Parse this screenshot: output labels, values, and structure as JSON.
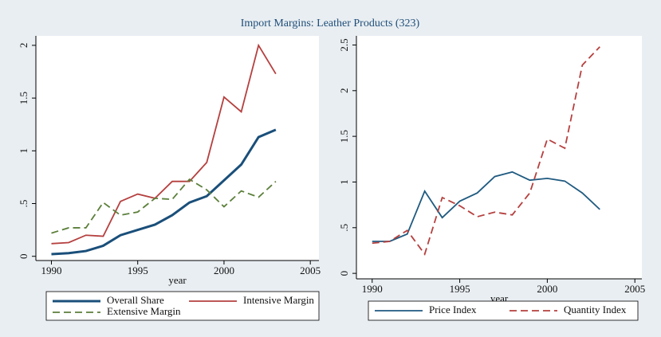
{
  "title": "Import Margins: Leather Products (323)",
  "chart_data": [
    {
      "type": "line",
      "xlabel": "year",
      "x": [
        1990,
        1991,
        1992,
        1993,
        1994,
        1995,
        1996,
        1997,
        1998,
        1999,
        2000,
        2001,
        2002,
        2003
      ],
      "xlim": [
        1989.1,
        2005.5
      ],
      "xticks": [
        1990,
        1995,
        2000,
        2005
      ],
      "ylim": [
        -0.04,
        2.09
      ],
      "yticks": [
        0,
        {
          "value": 0.5,
          "label": ".5"
        },
        1,
        1.5,
        2
      ],
      "series": [
        {
          "name": "Overall Share",
          "color": "#1a4f7a",
          "dash": false,
          "values": [
            0.02,
            0.03,
            0.05,
            0.1,
            0.2,
            0.25,
            0.3,
            0.39,
            0.51,
            0.57,
            0.72,
            0.87,
            1.13,
            1.2
          ]
        },
        {
          "name": "Intensive Margin",
          "color": "#b5403f",
          "dash": false,
          "values": [
            0.12,
            0.13,
            0.2,
            0.19,
            0.52,
            0.59,
            0.55,
            0.71,
            0.71,
            0.89,
            1.51,
            1.37,
            2.0,
            1.73
          ]
        },
        {
          "name": "Extensive Margin",
          "color": "#5b7f3a",
          "dash": true,
          "values": [
            0.22,
            0.27,
            0.27,
            0.51,
            0.39,
            0.42,
            0.55,
            0.54,
            0.73,
            0.63,
            0.47,
            0.62,
            0.56,
            0.71
          ]
        }
      ]
    },
    {
      "type": "line",
      "xlabel": "year",
      "x": [
        1990,
        1991,
        1992,
        1993,
        1994,
        1995,
        1996,
        1997,
        1998,
        1999,
        2000,
        2001,
        2002,
        2003
      ],
      "xlim": [
        1989.1,
        2005.4
      ],
      "xticks": [
        1990,
        1995,
        2000,
        2005
      ],
      "ylim": [
        -0.06,
        2.6
      ],
      "yticks": [
        0,
        {
          "value": 0.5,
          "label": ".5"
        },
        1,
        1.5,
        2,
        2.5
      ],
      "series": [
        {
          "name": "Price Index",
          "color": "#1f5a80",
          "dash": false,
          "values": [
            0.35,
            0.35,
            0.43,
            0.9,
            0.61,
            0.79,
            0.88,
            1.06,
            1.11,
            1.02,
            1.04,
            1.01,
            0.88,
            0.7
          ]
        },
        {
          "name": "Quantity Index",
          "color": "#b5403f",
          "dash": true,
          "values": [
            0.33,
            0.35,
            0.47,
            0.21,
            0.83,
            0.74,
            0.62,
            0.67,
            0.64,
            0.88,
            1.47,
            1.37,
            2.28,
            2.48
          ]
        }
      ]
    }
  ]
}
